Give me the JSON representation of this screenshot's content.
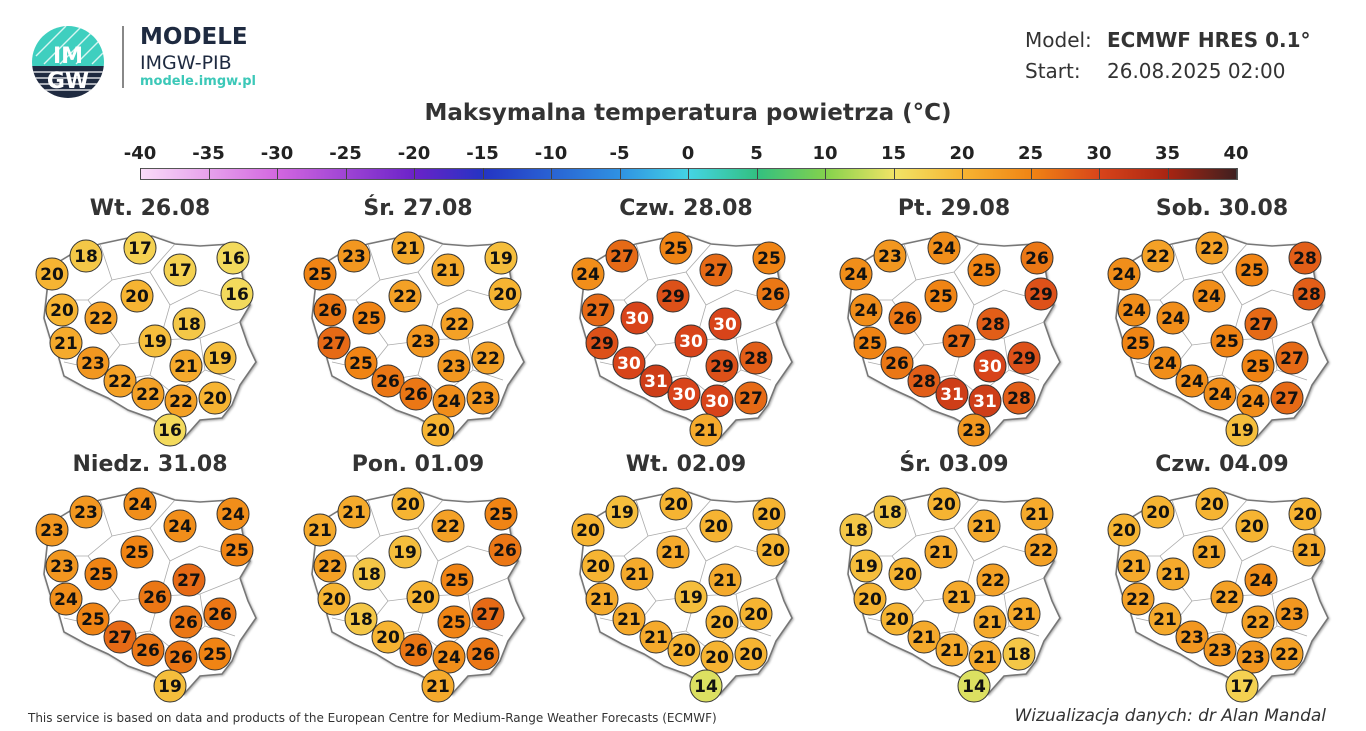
{
  "header": {
    "logo_text": "IMGW",
    "brand_title": "MODELE",
    "brand_subtitle": "IMGW-PIB",
    "brand_url": "modele.imgw.pl",
    "model_label": "Model:",
    "model_value": "ECMWF HRES 0.1°",
    "start_label": "Start:",
    "start_value": "26.08.2025 02:00"
  },
  "title": "Maksymalna temperatura powietrza (°C)",
  "colorbar": {
    "labels": [
      "-40",
      "-35",
      "-30",
      "-25",
      "-20",
      "-15",
      "-10",
      "-5",
      "0",
      "5",
      "10",
      "15",
      "20",
      "25",
      "30",
      "35",
      "40"
    ],
    "stops": [
      [
        -40,
        "#fadcf8"
      ],
      [
        -30,
        "#d266e0"
      ],
      [
        -20,
        "#6a22c8"
      ],
      [
        -15,
        "#2434c4"
      ],
      [
        -5,
        "#2f92e2"
      ],
      [
        0,
        "#44d4e4"
      ],
      [
        5,
        "#32c080"
      ],
      [
        10,
        "#84d24c"
      ],
      [
        15,
        "#f2e466"
      ],
      [
        20,
        "#f6b432"
      ],
      [
        25,
        "#f08414"
      ],
      [
        30,
        "#d8441a"
      ],
      [
        35,
        "#a82412"
      ],
      [
        40,
        "#3e2020"
      ]
    ]
  },
  "maps": [
    {
      "day": "Wt. 26.08",
      "values": [
        18,
        17,
        20,
        17,
        16,
        20,
        16,
        20,
        22,
        18,
        21,
        19,
        23,
        21,
        19,
        22,
        22,
        22,
        20,
        16
      ]
    },
    {
      "day": "Śr. 27.08",
      "values": [
        23,
        21,
        25,
        21,
        19,
        22,
        20,
        26,
        25,
        22,
        27,
        23,
        25,
        23,
        22,
        26,
        26,
        24,
        23,
        20
      ]
    },
    {
      "day": "Czw. 28.08",
      "values": [
        27,
        25,
        24,
        27,
        25,
        29,
        26,
        27,
        30,
        30,
        29,
        30,
        30,
        29,
        28,
        31,
        30,
        30,
        27,
        21
      ]
    },
    {
      "day": "Pt. 29.08",
      "values": [
        23,
        24,
        24,
        25,
        26,
        25,
        29,
        24,
        26,
        28,
        25,
        27,
        26,
        30,
        29,
        28,
        31,
        31,
        28,
        23
      ]
    },
    {
      "day": "Sob. 30.08",
      "values": [
        22,
        22,
        24,
        25,
        28,
        24,
        28,
        24,
        24,
        27,
        25,
        25,
        24,
        25,
        27,
        24,
        24,
        24,
        27,
        19
      ]
    },
    {
      "day": "Niedz. 31.08",
      "values": [
        23,
        24,
        23,
        24,
        24,
        25,
        25,
        23,
        25,
        27,
        24,
        26,
        25,
        26,
        26,
        27,
        26,
        26,
        25,
        19
      ]
    },
    {
      "day": "Pon. 01.09",
      "values": [
        21,
        20,
        21,
        22,
        25,
        19,
        26,
        22,
        18,
        25,
        20,
        20,
        18,
        25,
        27,
        20,
        26,
        24,
        26,
        21
      ]
    },
    {
      "day": "Wt. 02.09",
      "values": [
        19,
        20,
        20,
        20,
        20,
        21,
        20,
        20,
        21,
        21,
        21,
        19,
        21,
        20,
        20,
        21,
        20,
        20,
        20,
        14
      ]
    },
    {
      "day": "Śr. 03.09",
      "values": [
        18,
        20,
        18,
        21,
        21,
        21,
        22,
        19,
        20,
        22,
        20,
        21,
        20,
        21,
        21,
        21,
        21,
        21,
        18,
        14
      ]
    },
    {
      "day": "Czw. 04.09",
      "values": [
        20,
        20,
        20,
        20,
        20,
        21,
        21,
        21,
        21,
        24,
        22,
        22,
        21,
        22,
        23,
        23,
        23,
        23,
        22,
        17
      ]
    }
  ],
  "footer": {
    "credit": "This service is based on data and products of the European Centre for Medium-Range Weather Forecasts (ECMWF)",
    "author": "Wizualizacja danych: dr Alan Mandal"
  }
}
